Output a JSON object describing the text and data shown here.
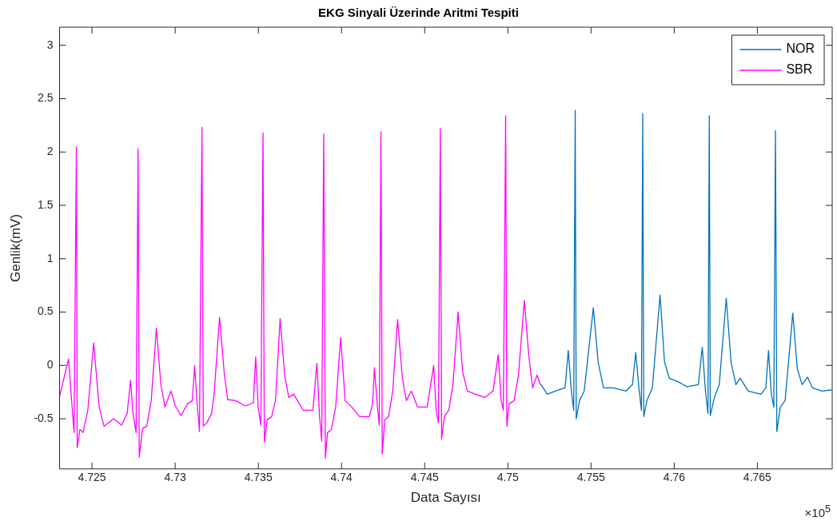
{
  "chart_data": {
    "type": "line",
    "title": "EKG Sinyali Üzerinde Aritmi Tespiti",
    "xlabel": "Data Sayısı",
    "ylabel": "Genlik(mV)",
    "annotations": [
      "×10$^{5}$"
    ],
    "xlim": [
      4.72305,
      4.7695
    ],
    "ylim": [
      -0.97,
      3.17
    ],
    "xticks": [
      4.725,
      4.73,
      4.735,
      4.74,
      4.745,
      4.75,
      4.755,
      4.76,
      4.765
    ],
    "yticks": [
      -0.5,
      0,
      0.5,
      1,
      1.5,
      2,
      2.5,
      3
    ],
    "grid": false,
    "legend": "top right",
    "marker": "none",
    "line_style": "solid",
    "series": [
      {
        "name": "NOR",
        "color": "#0072bd",
        "x": [
          4.75195,
          4.75199,
          4.75237,
          4.75286,
          4.75344,
          4.75363,
          4.75382,
          4.75396,
          4.75405,
          4.75411,
          4.75431,
          4.75459,
          4.75514,
          4.75543,
          4.75575,
          4.75633,
          4.75711,
          4.75749,
          4.75769,
          4.75788,
          4.75803,
          4.75811,
          4.75817,
          4.75836,
          4.75869,
          4.75915,
          4.75942,
          4.75971,
          4.7602,
          4.76078,
          4.76145,
          4.76169,
          4.76188,
          4.76203,
          4.76211,
          4.76217,
          4.76242,
          4.76271,
          4.76313,
          4.76342,
          4.76371,
          4.76397,
          4.76445,
          4.76522,
          4.76551,
          4.76567,
          4.76584,
          4.76599,
          4.76609,
          4.76617,
          4.76638,
          4.76667,
          4.76713,
          4.7674,
          4.76769,
          4.76802,
          4.76831,
          4.76889,
          4.76947
        ],
        "values": [
          -0.18,
          -0.18,
          -0.27,
          -0.24,
          -0.21,
          0.14,
          -0.24,
          -0.42,
          2.39,
          -0.5,
          -0.33,
          -0.24,
          0.54,
          0.03,
          -0.21,
          -0.21,
          -0.24,
          -0.18,
          0.12,
          -0.21,
          -0.42,
          2.36,
          -0.48,
          -0.33,
          -0.21,
          0.66,
          0.03,
          -0.12,
          -0.15,
          -0.2,
          -0.18,
          0.17,
          -0.24,
          -0.45,
          2.34,
          -0.47,
          -0.3,
          -0.18,
          0.63,
          0.03,
          -0.18,
          -0.12,
          -0.24,
          -0.27,
          -0.21,
          0.14,
          -0.27,
          -0.39,
          2.2,
          -0.62,
          -0.39,
          -0.33,
          0.49,
          -0.03,
          -0.18,
          -0.11,
          -0.21,
          -0.24,
          -0.23
        ]
      },
      {
        "name": "SBR",
        "color": "#ff00ff",
        "x": [
          4.72305,
          4.72359,
          4.72379,
          4.72392,
          4.72406,
          4.72411,
          4.72427,
          4.72446,
          4.72475,
          4.7251,
          4.72543,
          4.72572,
          4.7263,
          4.72678,
          4.72711,
          4.72732,
          4.72746,
          4.72765,
          4.72777,
          4.72784,
          4.72804,
          4.72829,
          4.72856,
          4.72887,
          4.72914,
          4.72939,
          4.72974,
          4.73001,
          4.73035,
          4.73074,
          4.73103,
          4.73117,
          4.73132,
          4.73146,
          4.73161,
          4.73169,
          4.7319,
          4.73219,
          4.73234,
          4.73267,
          4.73296,
          4.73316,
          4.73364,
          4.73422,
          4.7347,
          4.73484,
          4.73499,
          4.73515,
          4.73528,
          4.73536,
          4.73553,
          4.7358,
          4.73603,
          4.73631,
          4.73658,
          4.73683,
          4.73712,
          4.7377,
          4.73828,
          4.73852,
          4.73868,
          4.73881,
          4.73893,
          4.73903,
          4.73916,
          4.73939,
          4.73965,
          4.73995,
          4.74022,
          4.74061,
          4.74109,
          4.74167,
          4.74187,
          4.74198,
          4.74216,
          4.74227,
          4.74237,
          4.74245,
          4.7426,
          4.74283,
          4.74308,
          4.74337,
          4.74366,
          4.7439,
          4.74419,
          4.74457,
          4.74515,
          4.74554,
          4.74569,
          4.74583,
          4.74594,
          4.74602,
          4.74618,
          4.74645,
          4.7467,
          4.74701,
          4.74728,
          4.74757,
          4.74805,
          4.74863,
          4.74911,
          4.74942,
          4.7496,
          4.74973,
          4.74987,
          4.74994,
          4.75008,
          4.75037,
          4.75064,
          4.75099,
          4.75126,
          4.75149,
          4.75176,
          4.75195
        ],
        "values": [
          -0.29,
          0.06,
          -0.36,
          -0.63,
          2.05,
          -0.77,
          -0.6,
          -0.63,
          -0.42,
          0.21,
          -0.39,
          -0.57,
          -0.5,
          -0.56,
          -0.45,
          -0.14,
          -0.45,
          -0.63,
          2.03,
          -0.86,
          -0.59,
          -0.57,
          -0.33,
          0.35,
          -0.18,
          -0.39,
          -0.24,
          -0.38,
          -0.47,
          -0.36,
          -0.33,
          0.0,
          -0.36,
          -0.62,
          2.23,
          -0.57,
          -0.54,
          -0.45,
          -0.27,
          0.45,
          -0.09,
          -0.32,
          -0.33,
          -0.38,
          -0.35,
          0.08,
          -0.39,
          -0.56,
          2.18,
          -0.72,
          -0.51,
          -0.48,
          -0.33,
          0.44,
          -0.09,
          -0.3,
          -0.27,
          -0.42,
          -0.42,
          0.02,
          -0.48,
          -0.71,
          2.17,
          -0.87,
          -0.63,
          -0.6,
          -0.39,
          0.26,
          -0.33,
          -0.39,
          -0.48,
          -0.48,
          -0.36,
          -0.02,
          -0.39,
          -0.56,
          2.19,
          -0.83,
          -0.51,
          -0.48,
          -0.24,
          0.43,
          -0.12,
          -0.33,
          -0.24,
          -0.39,
          -0.39,
          0.0,
          -0.42,
          -0.54,
          2.22,
          -0.69,
          -0.48,
          -0.42,
          -0.18,
          0.5,
          -0.06,
          -0.24,
          -0.27,
          -0.3,
          -0.24,
          0.1,
          -0.33,
          -0.42,
          2.34,
          -0.57,
          -0.36,
          -0.33,
          -0.09,
          0.61,
          0.09,
          -0.21,
          -0.09,
          -0.18
        ]
      }
    ]
  }
}
